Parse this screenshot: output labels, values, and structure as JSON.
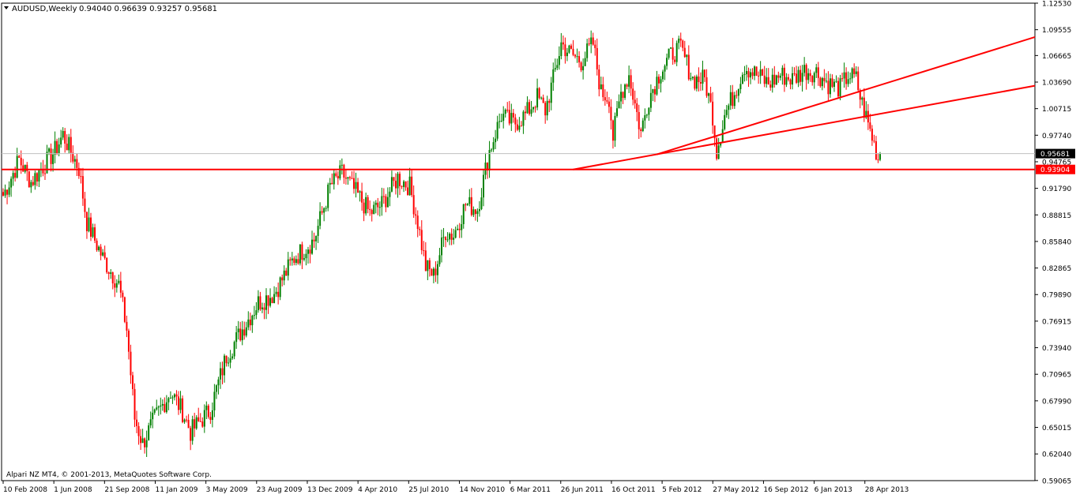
{
  "header": {
    "symbol": "AUDUSD,Weekly",
    "ohlc": "0.94040 0.96639 0.93257 0.95681"
  },
  "footer": {
    "copyright": "Alpari NZ MT4, © 2001-2013, MetaQuotes Software Corp."
  },
  "colors": {
    "background": "#ffffff",
    "axis": "#000000",
    "bull_candle": "#008000",
    "bear_candle": "#ff0000",
    "trendline": "#ff0000",
    "current_price_label": "#000000",
    "support_label": "#ff0000"
  },
  "chart_data": {
    "type": "candlestick",
    "title": "AUDUSD,Weekly",
    "ylim": [
      0.5905,
      1.1253
    ],
    "y_ticks": [
      "1.12530",
      "1.09555",
      "1.06665",
      "1.03690",
      "1.00715",
      "0.97740",
      "0.94765",
      "0.91790",
      "0.88815",
      "0.85840",
      "0.82865",
      "0.79890",
      "0.76915",
      "0.73940",
      "0.70965",
      "0.67990",
      "0.65015",
      "0.62040",
      "0.59065"
    ],
    "x_ticks": [
      "10 Feb 2008",
      "1 Jun 2008",
      "21 Sep 2008",
      "11 Jan 2009",
      "3 May 2009",
      "23 Aug 2009",
      "13 Dec 2009",
      "4 Apr 2010",
      "25 Jul 2010",
      "14 Nov 2010",
      "6 Mar 2011",
      "26 Jun 2011",
      "16 Oct 2011",
      "5 Feb 2012",
      "27 May 2012",
      "16 Sep 2012",
      "6 Jan 2013",
      "28 Apr 2013"
    ],
    "current_price": "0.95681",
    "horizontal_line": "0.93904",
    "grid": false,
    "path_anchors": [
      [
        0,
        0.91
      ],
      [
        8,
        0.95
      ],
      [
        14,
        0.925
      ],
      [
        26,
        0.96
      ],
      [
        30,
        0.978
      ],
      [
        38,
        0.94
      ],
      [
        42,
        0.88
      ],
      [
        50,
        0.84
      ],
      [
        58,
        0.81
      ],
      [
        62,
        0.76
      ],
      [
        66,
        0.66
      ],
      [
        70,
        0.632
      ],
      [
        76,
        0.66
      ],
      [
        84,
        0.69
      ],
      [
        90,
        0.668
      ],
      [
        94,
        0.645
      ],
      [
        98,
        0.655
      ],
      [
        104,
        0.67
      ],
      [
        112,
        0.73
      ],
      [
        120,
        0.76
      ],
      [
        128,
        0.79
      ],
      [
        136,
        0.8
      ],
      [
        146,
        0.84
      ],
      [
        156,
        0.86
      ],
      [
        164,
        0.92
      ],
      [
        170,
        0.935
      ],
      [
        178,
        0.91
      ],
      [
        184,
        0.89
      ],
      [
        190,
        0.9
      ],
      [
        198,
        0.93
      ],
      [
        204,
        0.92
      ],
      [
        208,
        0.88
      ],
      [
        212,
        0.83
      ],
      [
        216,
        0.82
      ],
      [
        222,
        0.87
      ],
      [
        226,
        0.865
      ],
      [
        232,
        0.9
      ],
      [
        238,
        0.895
      ],
      [
        244,
        0.96
      ],
      [
        250,
        1.0
      ],
      [
        256,
        0.99
      ],
      [
        262,
        1.0
      ],
      [
        268,
        1.02
      ],
      [
        272,
        1.005
      ],
      [
        276,
        1.04
      ],
      [
        280,
        1.08
      ],
      [
        284,
        1.07
      ],
      [
        290,
        1.06
      ],
      [
        296,
        1.08
      ],
      [
        300,
        1.025
      ],
      [
        304,
        1.02
      ],
      [
        306,
        0.975
      ],
      [
        310,
        1.025
      ],
      [
        314,
        1.045
      ],
      [
        320,
        0.98
      ],
      [
        324,
        1.02
      ],
      [
        330,
        1.05
      ],
      [
        336,
        1.07
      ],
      [
        340,
        1.075
      ],
      [
        346,
        1.04
      ],
      [
        352,
        1.04
      ],
      [
        356,
        1.0
      ],
      [
        358,
        0.96
      ],
      [
        362,
        1.0
      ],
      [
        366,
        1.02
      ],
      [
        372,
        1.055
      ],
      [
        378,
        1.045
      ],
      [
        384,
        1.035
      ],
      [
        390,
        1.045
      ],
      [
        396,
        1.04
      ],
      [
        402,
        1.05
      ],
      [
        408,
        1.048
      ],
      [
        414,
        1.035
      ],
      [
        420,
        1.03
      ],
      [
        424,
        1.045
      ],
      [
        428,
        1.04
      ],
      [
        430,
        1.02
      ],
      [
        434,
        0.99
      ],
      [
        436,
        0.975
      ],
      [
        438,
        0.96
      ],
      [
        440,
        0.9423
      ]
    ],
    "support_trendline": {
      "from": [
        "Aug 2011",
        0.939
      ],
      "to": [
        "Jun 2012",
        0.956
      ],
      "extends_right": true
    },
    "channel_trendline": {
      "from": [
        "Jun 2012",
        0.956
      ],
      "to": [
        "Apr 2013",
        1.028
      ],
      "extends_right": true
    }
  }
}
